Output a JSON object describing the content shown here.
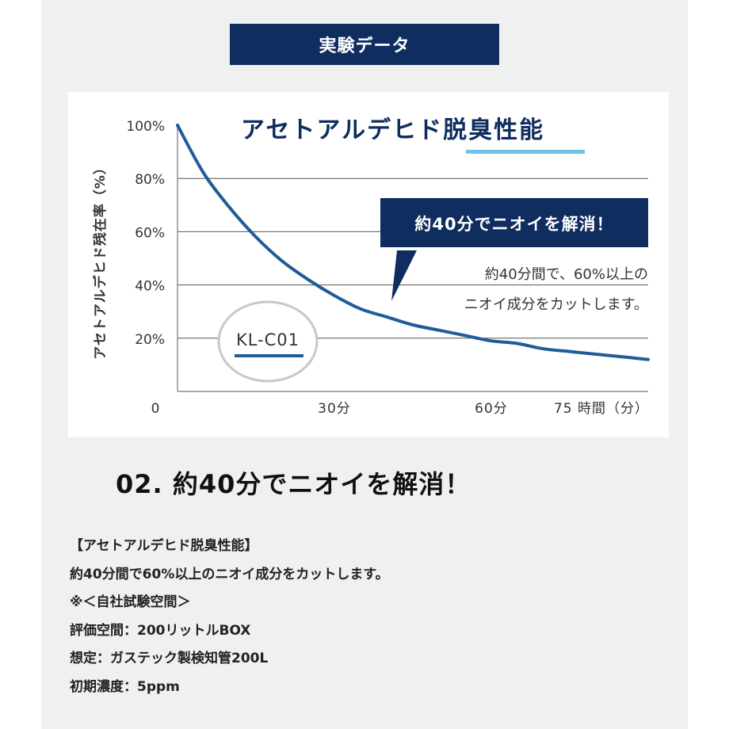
{
  "header": {
    "badge_label": "実験データ"
  },
  "chart_data": {
    "type": "line",
    "title_part1": "アセトアルデヒド",
    "title_part2": "脱臭性能",
    "ylabel": "アセトアルデヒド残在率（%）",
    "xlabel": "",
    "ylim": [
      0,
      100
    ],
    "xlim": [
      0,
      90
    ],
    "yticks": [
      {
        "label": "100%",
        "value": 100
      },
      {
        "label": "80%",
        "value": 80
      },
      {
        "label": "60%",
        "value": 60
      },
      {
        "label": "40%",
        "value": 40
      },
      {
        "label": "20%",
        "value": 20
      }
    ],
    "origin_label": "0",
    "xticks": [
      {
        "label": "30分",
        "value": 30
      },
      {
        "label": "60分",
        "value": 60
      },
      {
        "label": "75 時間（分）",
        "value": 75
      }
    ],
    "grid": true,
    "series": [
      {
        "name": "KL-C01",
        "color": "#1f5c99",
        "x": [
          0,
          5,
          10,
          15,
          20,
          25,
          30,
          35,
          40,
          45,
          50,
          55,
          60,
          65,
          70,
          75,
          80,
          85,
          90
        ],
        "y": [
          100,
          82,
          69,
          58,
          49,
          42,
          36,
          31,
          28,
          25,
          23,
          21,
          19,
          18,
          16,
          15,
          14,
          13,
          12
        ]
      }
    ],
    "callout": {
      "label": "約40分でニオイを解消！",
      "note_line1": "約40分間で、60%以上の",
      "note_line2": "ニオイ成分をカットします。",
      "points_to_x": 40
    },
    "legend_label": "KL-C01",
    "colors": {
      "navy": "#0f2d5f",
      "accent_underline": "#6fc3e8",
      "grid": "#555555"
    }
  },
  "section": {
    "heading": "02. 約40分でニオイを解消！"
  },
  "description": {
    "lines": [
      "【アセトアルデヒド脱臭性能】",
      "約40分間で60%以上のニオイ成分をカットします。",
      "※＜自社試験空間＞",
      "評価空間：200リットルBOX",
      "想定：ガステック製検知管200L",
      "初期濃度：5ppm"
    ]
  }
}
